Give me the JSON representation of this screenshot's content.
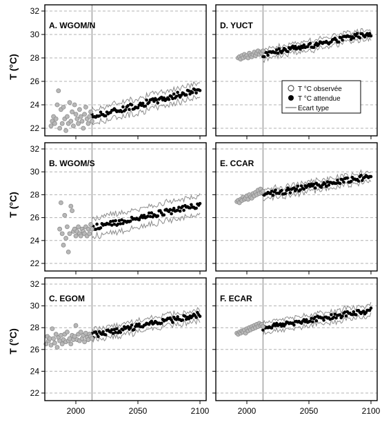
{
  "figure": {
    "ylabel": "T (°C)",
    "x_ticks": [
      "2000",
      "2050",
      "2100"
    ],
    "y_ticks": [
      "22",
      "24",
      "26",
      "28",
      "30",
      "32"
    ]
  },
  "legend": {
    "observed": "T °C observée",
    "expected": "T °C attendue",
    "stddev": "Ecart type"
  },
  "colors": {
    "observed_fill": "#b8b8b8",
    "observed_stroke": "#8c8c8c",
    "expected": "#000000",
    "stddev": "#8a8a8a",
    "grid": "#b0b0b0",
    "divider": "#808080"
  },
  "chart_data": [
    {
      "type": "scatter",
      "title": "A. WGOM/N",
      "xlim": [
        1975,
        2105
      ],
      "ylim": [
        21,
        33
      ],
      "grid": "horizontal dashed",
      "divider_year": 2013,
      "observed": {
        "x_range": [
          1980,
          2013
        ],
        "values": [
          22.2,
          22.6,
          23.0,
          22.4,
          22.8,
          24.0,
          25.2,
          22.0,
          23.6,
          22.4,
          23.8,
          22.8,
          21.8,
          23.0,
          22.4,
          24.2,
          22.6,
          23.4,
          22.2,
          24.0,
          23.2,
          22.8,
          22.4,
          23.6,
          23.0,
          22.6,
          22.0,
          23.2,
          23.8,
          22.8,
          22.4,
          23.0,
          23.4,
          22.6
        ]
      },
      "expected": {
        "x": [
          2013,
          2100
        ],
        "y": [
          23.0,
          25.3
        ]
      },
      "stddev_width": 0.6
    },
    {
      "type": "scatter",
      "title": "D. YUCT",
      "xlim": [
        1975,
        2105
      ],
      "ylim": [
        21,
        33
      ],
      "grid": "horizontal dashed",
      "divider_year": 2013,
      "legend_position": "right",
      "observed": {
        "x_range": [
          1993,
          2013
        ],
        "values": [
          28.0,
          28.1,
          27.9,
          28.2,
          28.0,
          28.3,
          28.1,
          28.2,
          28.0,
          28.4,
          28.2,
          28.1,
          28.3,
          28.5,
          28.2,
          28.4,
          28.6,
          28.3,
          28.5,
          28.4,
          28.6
        ]
      },
      "expected": {
        "x": [
          2013,
          2100
        ],
        "y": [
          28.3,
          30.1
        ]
      },
      "stddev_width": 0.4
    },
    {
      "type": "scatter",
      "title": "B. WGOM/S",
      "xlim": [
        1975,
        2105
      ],
      "ylim": [
        21,
        33
      ],
      "grid": "horizontal dashed",
      "divider_year": 2013,
      "observed": {
        "x_range": [
          1987,
          2013
        ],
        "values": [
          25.0,
          27.3,
          24.6,
          23.6,
          26.2,
          24.2,
          25.2,
          23.0,
          24.6,
          27.0,
          26.6,
          24.8,
          25.0,
          24.4,
          24.8,
          25.2,
          24.6,
          24.4,
          25.0,
          24.8,
          24.6,
          25.2,
          24.4,
          25.0,
          24.6,
          25.4,
          25.0
        ]
      },
      "expected": {
        "x": [
          2013,
          2100
        ],
        "y": [
          25.1,
          27.1
        ]
      },
      "stddev_width": 0.8
    },
    {
      "type": "scatter",
      "title": "E. CCAR",
      "xlim": [
        1975,
        2105
      ],
      "ylim": [
        21,
        33
      ],
      "grid": "horizontal dashed",
      "divider_year": 2013,
      "observed": {
        "x_range": [
          1992,
          2013
        ],
        "values": [
          27.4,
          27.5,
          27.3,
          27.6,
          27.5,
          27.8,
          27.6,
          27.7,
          27.9,
          27.6,
          28.0,
          27.8,
          27.7,
          28.1,
          27.9,
          28.2,
          28.0,
          28.4,
          28.1,
          28.5,
          28.2,
          28.3
        ]
      },
      "expected": {
        "x": [
          2013,
          2100
        ],
        "y": [
          28.0,
          29.6
        ]
      },
      "stddev_width": 0.4
    },
    {
      "type": "scatter",
      "title": "C. EGOM",
      "xlim": [
        1975,
        2105
      ],
      "ylim": [
        21,
        33
      ],
      "grid": "horizontal dashed",
      "divider_year": 2013,
      "observed": {
        "x_range": [
          1976,
          2013
        ],
        "values": [
          26.5,
          27.2,
          26.8,
          27.0,
          26.4,
          27.9,
          27.0,
          26.6,
          27.4,
          26.2,
          27.1,
          26.8,
          27.3,
          26.5,
          26.9,
          27.4,
          26.7,
          27.6,
          26.8,
          27.0,
          26.5,
          27.3,
          26.9,
          27.2,
          28.2,
          26.9,
          27.4,
          26.8,
          27.6,
          27.0,
          27.3,
          26.7,
          27.5,
          27.1,
          26.9,
          27.4,
          27.2,
          27.0
        ]
      },
      "expected": {
        "x": [
          2013,
          2100
        ],
        "y": [
          27.3,
          29.2
        ]
      },
      "stddev_width": 0.5
    },
    {
      "type": "scatter",
      "title": "F. ECAR",
      "xlim": [
        1975,
        2105
      ],
      "ylim": [
        21,
        33
      ],
      "grid": "horizontal dashed",
      "divider_year": 2013,
      "observed": {
        "x_range": [
          1992,
          2013
        ],
        "values": [
          27.5,
          27.4,
          27.6,
          27.5,
          27.7,
          27.6,
          27.8,
          27.5,
          27.9,
          27.7,
          28.0,
          27.8,
          28.1,
          27.9,
          28.2,
          28.0,
          28.3,
          28.1,
          28.4,
          28.2,
          28.3,
          28.1
        ]
      },
      "expected": {
        "x": [
          2013,
          2100
        ],
        "y": [
          28.0,
          29.6
        ]
      },
      "stddev_width": 0.5
    }
  ]
}
